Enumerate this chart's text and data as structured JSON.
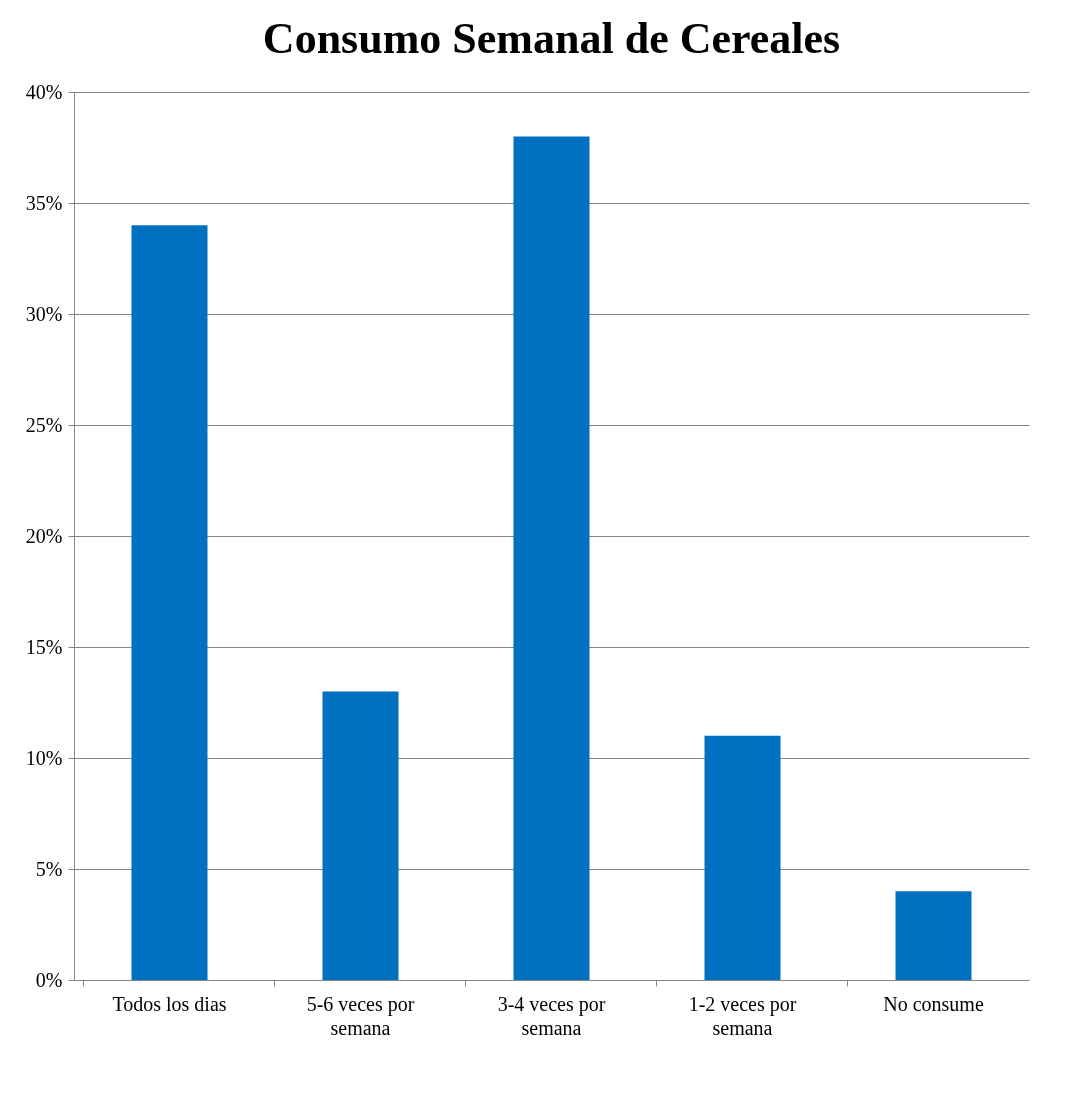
{
  "chart_data": {
    "type": "bar",
    "title": "Consumo Semanal de Cereales",
    "categories": [
      "Todos los dias",
      "5-6 veces por semana",
      "3-4 veces por semana",
      "1-2 veces por semana",
      "No consume"
    ],
    "values": [
      34,
      13,
      38,
      11,
      4
    ],
    "color": "#0070c0",
    "ylim": [
      0,
      40
    ],
    "yticks": [
      {
        "value": 0,
        "label": "0%"
      },
      {
        "value": 5,
        "label": "5%"
      },
      {
        "value": 10,
        "label": "10%"
      },
      {
        "value": 15,
        "label": "15%"
      },
      {
        "value": 20,
        "label": "20%"
      },
      {
        "value": 25,
        "label": "25%"
      },
      {
        "value": 30,
        "label": "30%"
      },
      {
        "value": 35,
        "label": "35%"
      },
      {
        "value": 40,
        "label": "40%"
      }
    ],
    "grid": "y"
  }
}
